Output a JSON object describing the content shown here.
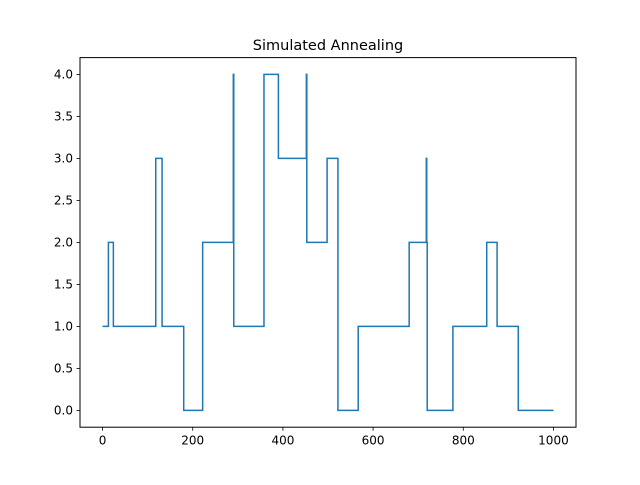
{
  "chart_data": {
    "type": "line",
    "title": "Simulated Annealing",
    "xlabel": "",
    "ylabel": "",
    "xlim": [
      -50,
      1050
    ],
    "ylim": [
      -0.2,
      4.2
    ],
    "x_ticks": [
      0,
      200,
      400,
      600,
      800,
      1000
    ],
    "x_tick_labels": [
      "0",
      "200",
      "400",
      "600",
      "800",
      "1000"
    ],
    "y_ticks": [
      0.0,
      0.5,
      1.0,
      1.5,
      2.0,
      2.5,
      3.0,
      3.5,
      4.0
    ],
    "y_tick_labels": [
      "0.0",
      "0.5",
      "1.0",
      "1.5",
      "2.0",
      "2.5",
      "3.0",
      "3.5",
      "4.0"
    ],
    "grid": false,
    "series": [
      {
        "color": "#1f77b4",
        "x": [
          0,
          13,
          13,
          24,
          24,
          118,
          118,
          132,
          132,
          180,
          180,
          222,
          222,
          290,
          290,
          291,
          291,
          358,
          358,
          390,
          390,
          452,
          452,
          453,
          453,
          498,
          498,
          522,
          522,
          567,
          567,
          680,
          680,
          718,
          718,
          719,
          719,
          720,
          720,
          777,
          777,
          852,
          852,
          875,
          875,
          922,
          922,
          1000
        ],
        "y": [
          1,
          1,
          2,
          2,
          1,
          1,
          3,
          3,
          1,
          1,
          0,
          0,
          2,
          2,
          4,
          4,
          1,
          1,
          4,
          4,
          3,
          3,
          4,
          4,
          2,
          2,
          3,
          3,
          0,
          0,
          1,
          1,
          2,
          2,
          3,
          3,
          2,
          2,
          0,
          0,
          1,
          1,
          2,
          2,
          1,
          1,
          0,
          0
        ]
      }
    ]
  }
}
